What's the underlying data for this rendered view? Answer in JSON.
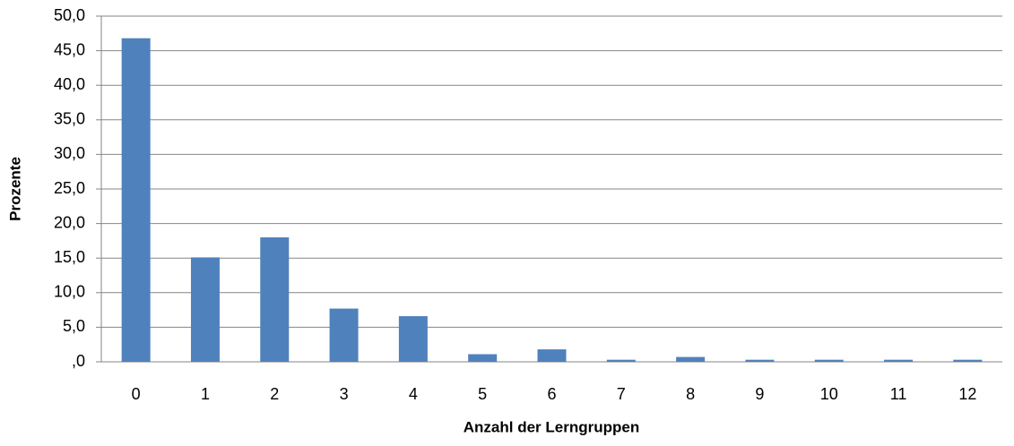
{
  "chart_data": {
    "type": "bar",
    "xlabel": "Anzahl der Lerngruppen",
    "ylabel": "Prozente",
    "categories": [
      "0",
      "1",
      "2",
      "3",
      "4",
      "5",
      "6",
      "7",
      "8",
      "9",
      "10",
      "11",
      "12"
    ],
    "values": [
      46.8,
      15.1,
      18.0,
      7.7,
      6.6,
      1.1,
      1.8,
      0.3,
      0.7,
      0.3,
      0.3,
      0.3,
      0.3
    ],
    "color": "#4f81bd",
    "ylim": [
      0,
      50
    ],
    "yticks": [
      {
        "value": 0,
        "label": ",0"
      },
      {
        "value": 5,
        "label": "5,0"
      },
      {
        "value": 10,
        "label": "10,0"
      },
      {
        "value": 15,
        "label": "15,0"
      },
      {
        "value": 20,
        "label": "20,0"
      },
      {
        "value": 25,
        "label": "25,0"
      },
      {
        "value": 30,
        "label": "30,0"
      },
      {
        "value": 35,
        "label": "35,0"
      },
      {
        "value": 40,
        "label": "40,0"
      },
      {
        "value": 45,
        "label": "45,0"
      },
      {
        "value": 50,
        "label": "50,0"
      }
    ],
    "grid": true
  }
}
